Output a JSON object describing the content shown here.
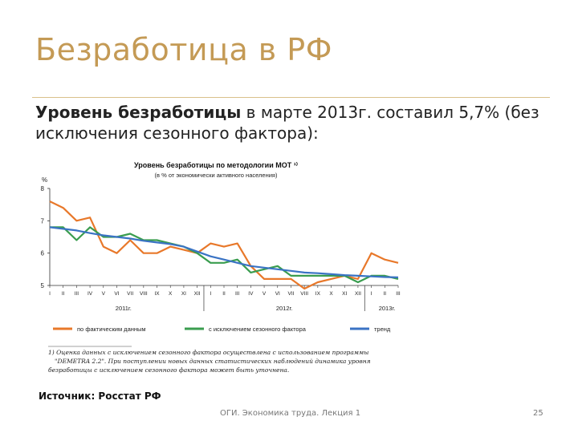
{
  "slide": {
    "title": "Безработица в РФ",
    "subtitle_bold": "Уровень безработицы",
    "subtitle_rest": " в марте 2013г. составил 5,7% (без исключения сезонного фактора):",
    "source": "Источник: Росстат РФ",
    "footer": "ОГИ. Экономика труда. Лекция 1",
    "page_number": "25",
    "colors": {
      "title": "#c49a55",
      "rule": "#d9c08a"
    }
  },
  "chart_data": {
    "type": "line",
    "title": "Уровень безработицы по методологии МОТ ¹⁾",
    "subtitle": "(в % от экономически активного населения)",
    "ylabel": "%",
    "ylim": [
      5,
      8
    ],
    "yticks": [
      "8",
      "7",
      "6",
      "5"
    ],
    "categories": [
      "I",
      "II",
      "III",
      "IV",
      "V",
      "VI",
      "VII",
      "VIII",
      "IX",
      "X",
      "XI",
      "XII",
      "I",
      "II",
      "III",
      "IV",
      "V",
      "VI",
      "VII",
      "VIII",
      "IX",
      "X",
      "XI",
      "XII",
      "I",
      "II",
      "III"
    ],
    "year_labels": [
      "2011г.",
      "2012г.",
      "2013г."
    ],
    "series": [
      {
        "name": "по фактическим данным",
        "color": "#e8782a",
        "values": [
          7.6,
          7.4,
          7.0,
          7.1,
          6.2,
          6.0,
          6.4,
          6.0,
          6.0,
          6.2,
          6.1,
          6.0,
          6.3,
          6.2,
          6.3,
          5.6,
          5.2,
          5.2,
          5.2,
          4.9,
          5.1,
          5.2,
          5.3,
          5.2,
          6.0,
          5.8,
          5.7
        ]
      },
      {
        "name": "с исключением сезонного фактора",
        "color": "#3a9d4f",
        "values": [
          6.8,
          6.8,
          6.4,
          6.8,
          6.5,
          6.5,
          6.6,
          6.4,
          6.4,
          6.3,
          6.2,
          6.0,
          5.7,
          5.7,
          5.8,
          5.4,
          5.5,
          5.6,
          5.3,
          5.3,
          5.3,
          5.3,
          5.3,
          5.1,
          5.3,
          5.3,
          5.2
        ]
      },
      {
        "name": "тренд",
        "color": "#3a73c4",
        "values": [
          6.8,
          6.75,
          6.7,
          6.62,
          6.55,
          6.5,
          6.45,
          6.38,
          6.33,
          6.28,
          6.2,
          6.05,
          5.9,
          5.8,
          5.7,
          5.6,
          5.55,
          5.5,
          5.45,
          5.4,
          5.38,
          5.35,
          5.32,
          5.3,
          5.28,
          5.26,
          5.25
        ]
      }
    ],
    "note": [
      "1) Оценка данных с исключением сезонного фактора осуществлена с использованием программы",
      "\"DEMETRA 2.2\". При поступлении новых данных статистических наблюдений динамика уровня",
      "безработицы с исключением сезонного фактора может быть уточнена."
    ],
    "grid": false,
    "legend_position": "bottom"
  }
}
